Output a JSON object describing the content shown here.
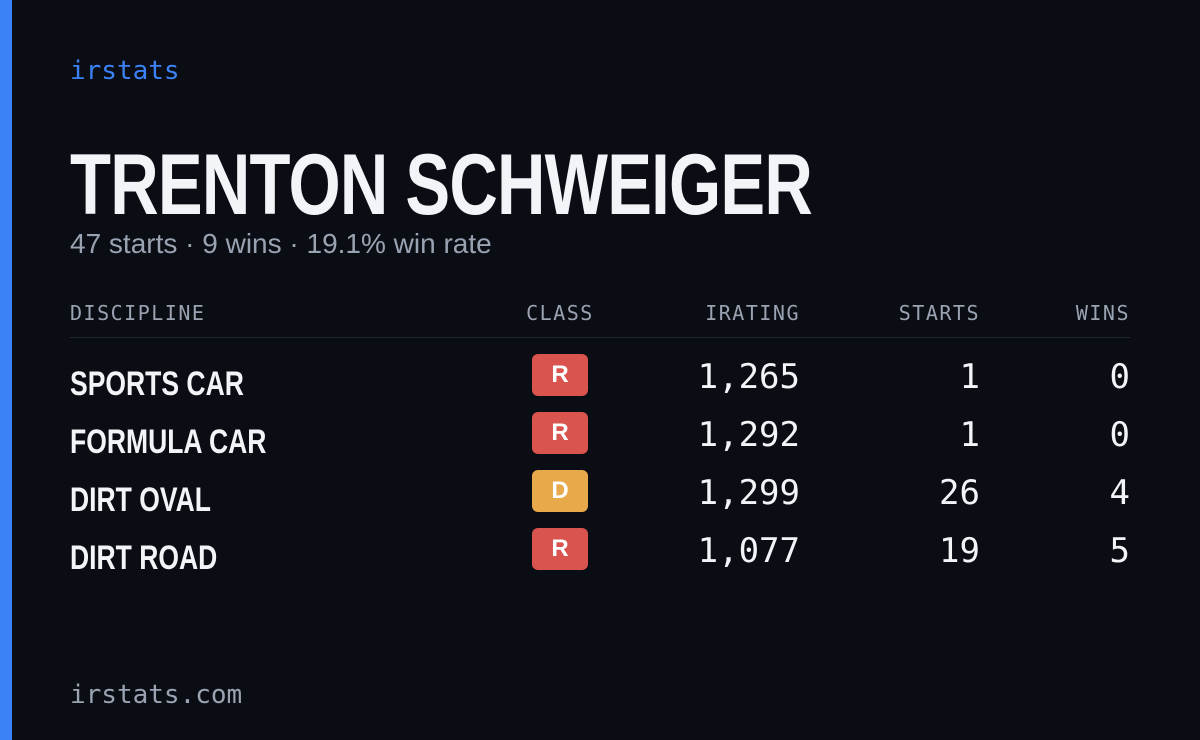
{
  "brand": "irstats",
  "driver": {
    "name": "TRENTON SCHWEIGER",
    "summary": "47 starts · 9 wins · 19.1% win rate"
  },
  "table": {
    "headers": [
      "DISCIPLINE",
      "CLASS",
      "IRATING",
      "STARTS",
      "WINS"
    ],
    "rows": [
      [
        "SPORTS CAR",
        "R",
        "1,265",
        "1",
        "0"
      ],
      [
        "FORMULA CAR",
        "R",
        "1,292",
        "1",
        "0"
      ],
      [
        "DIRT OVAL",
        "D",
        "1,299",
        "26",
        "4"
      ],
      [
        "DIRT ROAD",
        "R",
        "1,077",
        "19",
        "5"
      ]
    ]
  },
  "footer": "irstats.com"
}
